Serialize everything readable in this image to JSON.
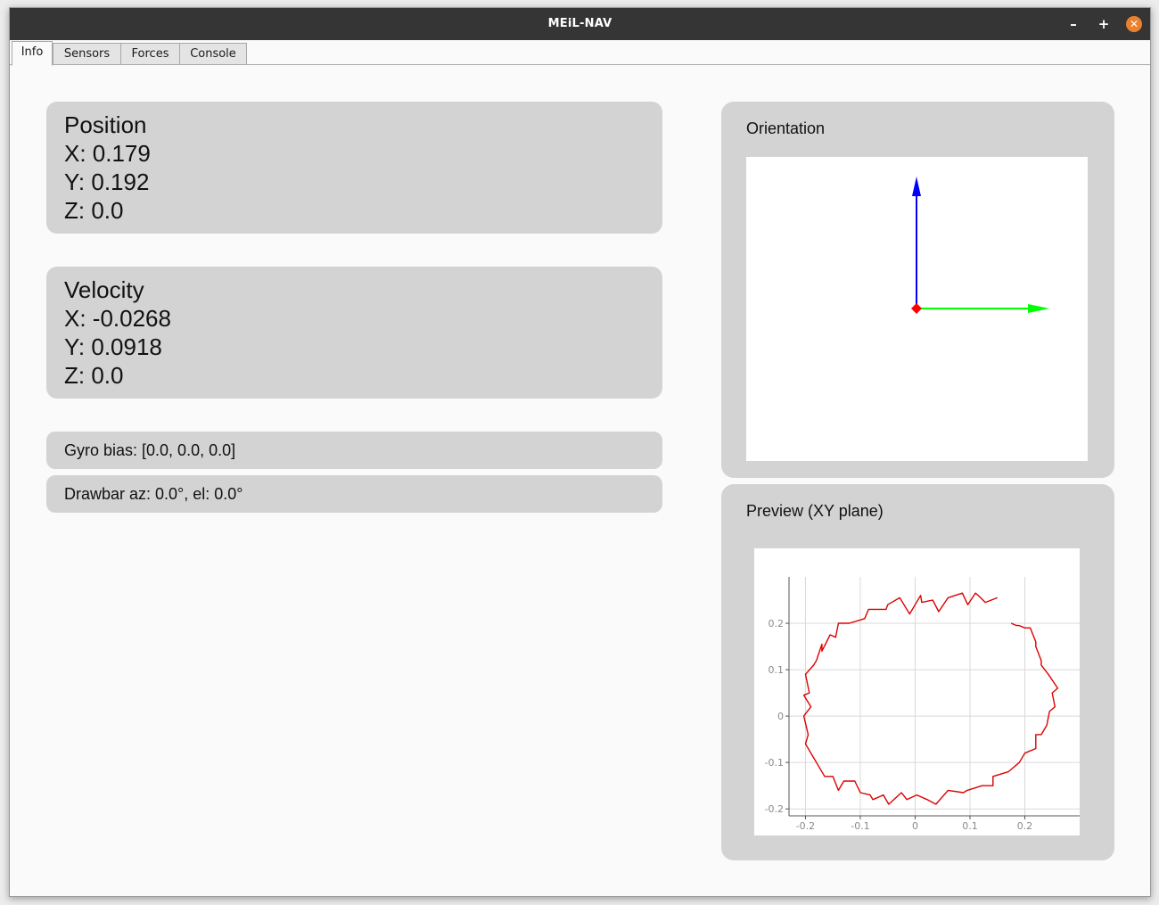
{
  "window": {
    "title": "MEiL-NAV",
    "controls": {
      "minimize": "–",
      "maximize": "+",
      "close": "✕"
    }
  },
  "tabs": [
    {
      "label": "Info",
      "active": true
    },
    {
      "label": "Sensors",
      "active": false
    },
    {
      "label": "Forces",
      "active": false
    },
    {
      "label": "Console",
      "active": false
    }
  ],
  "position": {
    "title": "Position",
    "x": "X: 0.179",
    "y": "Y: 0.192",
    "z": "Z: 0.0"
  },
  "velocity": {
    "title": "Velocity",
    "x": "X: -0.0268",
    "y": "Y: 0.0918",
    "z": "Z: 0.0"
  },
  "gyro_bias": "Gyro bias: [0.0, 0.0, 0.0]",
  "drawbar": "Drawbar az: 0.0°, el: 0.0°",
  "orientation": {
    "title": "Orientation",
    "axes": [
      {
        "name": "x-axis",
        "color": "#00ff00"
      },
      {
        "name": "z-axis",
        "color": "#0000ff"
      },
      {
        "name": "origin",
        "color": "#ff0000"
      }
    ]
  },
  "preview": {
    "title": "Preview (XY plane)"
  },
  "chart_data": {
    "type": "line",
    "title": "",
    "xlabel": "",
    "ylabel": "",
    "xlim": [
      -0.23,
      0.3
    ],
    "ylim": [
      -0.215,
      0.3
    ],
    "xticks": [
      -0.2,
      -0.1,
      0,
      0.1,
      0.2
    ],
    "xtick_labels": [
      "-0.2",
      "-0.1",
      "0",
      "0.1",
      "0.2"
    ],
    "yticks": [
      -0.2,
      -0.1,
      0,
      0.1,
      0.2
    ],
    "ytick_labels": [
      "-0.2",
      "-0.1",
      "0",
      "0.1",
      "0.2"
    ],
    "grid": true,
    "series": [
      {
        "color": "#dd0000",
        "x": [
          0.15,
          0.128,
          0.115,
          0.11,
          0.096,
          0.086,
          0.06,
          0.043,
          0.032,
          0.012,
          0.01,
          -0.01,
          -0.028,
          -0.05,
          -0.053,
          -0.085,
          -0.092,
          -0.12,
          -0.14,
          -0.145,
          -0.155,
          -0.17,
          -0.17,
          -0.18,
          -0.185,
          -0.2,
          -0.193,
          -0.203,
          -0.19,
          -0.203,
          -0.195,
          -0.2,
          -0.185,
          -0.18,
          -0.165,
          -0.15,
          -0.14,
          -0.13,
          -0.11,
          -0.1,
          -0.082,
          -0.077,
          -0.058,
          -0.048,
          -0.025,
          -0.015,
          0.003,
          0.022,
          0.038,
          0.06,
          0.088,
          0.095,
          0.122,
          0.142,
          0.142,
          0.17,
          0.19,
          0.2,
          0.22,
          0.22,
          0.23,
          0.24,
          0.245,
          0.255,
          0.25,
          0.26,
          0.243,
          0.23,
          0.23,
          0.22,
          0.22,
          0.21,
          0.2,
          0.19,
          0.185,
          0.175
        ],
        "y": [
          0.255,
          0.245,
          0.26,
          0.265,
          0.24,
          0.265,
          0.255,
          0.225,
          0.25,
          0.245,
          0.26,
          0.22,
          0.255,
          0.24,
          0.23,
          0.23,
          0.21,
          0.2,
          0.2,
          0.17,
          0.175,
          0.14,
          0.155,
          0.12,
          0.11,
          0.09,
          0.05,
          0.045,
          0.02,
          0.0,
          -0.04,
          -0.06,
          -0.09,
          -0.1,
          -0.13,
          -0.13,
          -0.16,
          -0.14,
          -0.14,
          -0.165,
          -0.17,
          -0.18,
          -0.17,
          -0.19,
          -0.165,
          -0.18,
          -0.17,
          -0.18,
          -0.19,
          -0.16,
          -0.165,
          -0.16,
          -0.15,
          -0.15,
          -0.13,
          -0.12,
          -0.1,
          -0.08,
          -0.07,
          -0.04,
          -0.04,
          -0.02,
          0.01,
          0.02,
          0.05,
          0.06,
          0.09,
          0.11,
          0.12,
          0.15,
          0.16,
          0.19,
          0.19,
          0.195,
          0.195,
          0.2
        ]
      }
    ]
  }
}
